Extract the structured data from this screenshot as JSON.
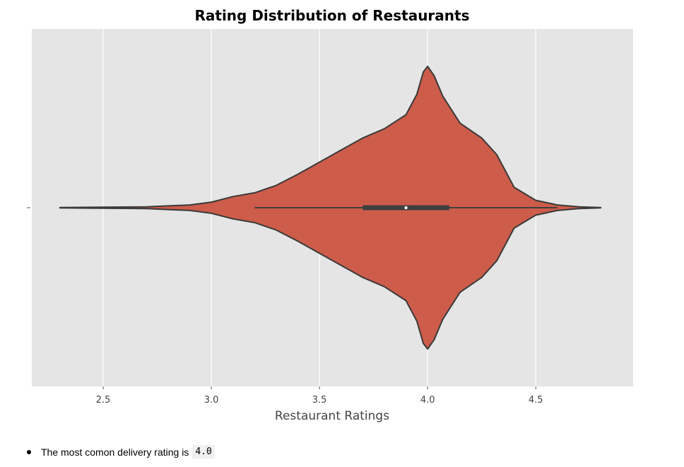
{
  "chart_data": {
    "type": "violin",
    "title": "Rating Distribution of Restaurants",
    "xlabel": "Restaurant Ratings",
    "ylabel": "",
    "xlim": [
      2.17,
      4.95
    ],
    "xticks": [
      "2.5",
      "3.0",
      "3.5",
      "4.0",
      "4.5"
    ],
    "grid": true,
    "background": "#e5e5e5",
    "fill_color": "#cd5c4a",
    "edge_color": "#3a3a3a",
    "density": {
      "x": [
        2.3,
        2.5,
        2.7,
        2.9,
        3.0,
        3.1,
        3.2,
        3.3,
        3.4,
        3.5,
        3.6,
        3.7,
        3.8,
        3.9,
        3.95,
        3.98,
        4.0,
        4.03,
        4.07,
        4.15,
        4.25,
        4.32,
        4.4,
        4.5,
        4.6,
        4.7,
        4.8
      ],
      "width": [
        0.002,
        0.005,
        0.01,
        0.03,
        0.06,
        0.12,
        0.16,
        0.24,
        0.36,
        0.49,
        0.62,
        0.75,
        0.85,
        1.0,
        1.22,
        1.46,
        1.52,
        1.42,
        1.2,
        0.91,
        0.75,
        0.57,
        0.22,
        0.08,
        0.03,
        0.01,
        0.002
      ]
    },
    "box": {
      "whisker_low": 3.2,
      "q1": 3.7,
      "median": 3.9,
      "q3": 4.1,
      "whisker_high": 4.6
    }
  },
  "note": {
    "text": "The most comon delivery rating is",
    "code": "4.0"
  }
}
